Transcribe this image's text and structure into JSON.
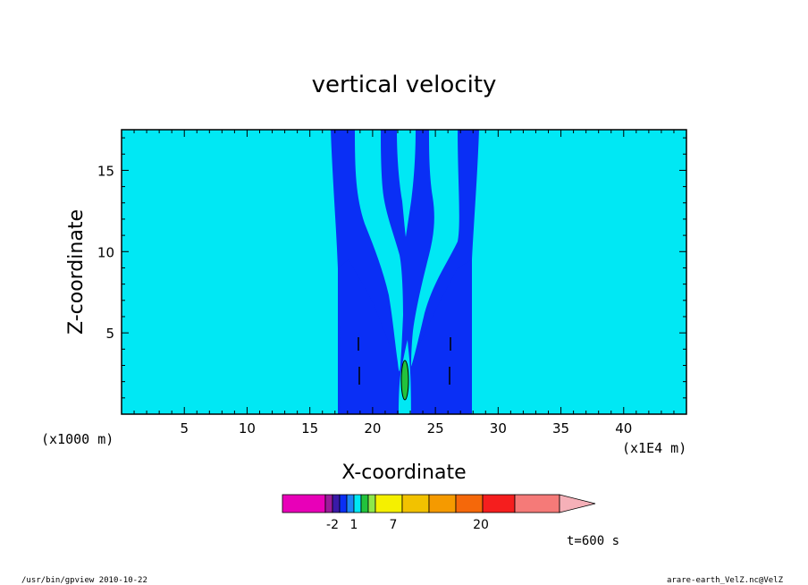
{
  "chart_data": {
    "type": "contour",
    "title": "vertical velocity",
    "xlabel": "X-coordinate",
    "ylabel": "Z-coordinate",
    "x_unit": "(x1E4 m)",
    "y_unit": "(x1000 m)",
    "xlim": [
      0,
      45
    ],
    "ylim": [
      0,
      17.5
    ],
    "x_ticks": [
      "5",
      "10",
      "15",
      "20",
      "25",
      "30",
      "35",
      "40"
    ],
    "y_ticks": [
      "5",
      "10",
      "15"
    ],
    "colors": {
      "background_field": "#00e8f4",
      "updraft_field": "#0a2ff5",
      "core": "#22c33c"
    },
    "colorbar": {
      "colors": [
        "#e800b8",
        "#9a1c9a",
        "#3a1aa8",
        "#0a2ff5",
        "#1e86f5",
        "#00e8f4",
        "#22c33c",
        "#8ee84a",
        "#f5f000",
        "#f2c200",
        "#f59a00",
        "#f5680a",
        "#f51e1e",
        "#f57a78",
        "#f5b0b8"
      ],
      "labels": [
        "-2",
        "1",
        "7",
        "20"
      ]
    },
    "time": "t=600 s"
  },
  "footer": {
    "left": "/usr/bin/gpview   2010-10-22",
    "right": "arare-earth_VelZ.nc@VelZ"
  }
}
